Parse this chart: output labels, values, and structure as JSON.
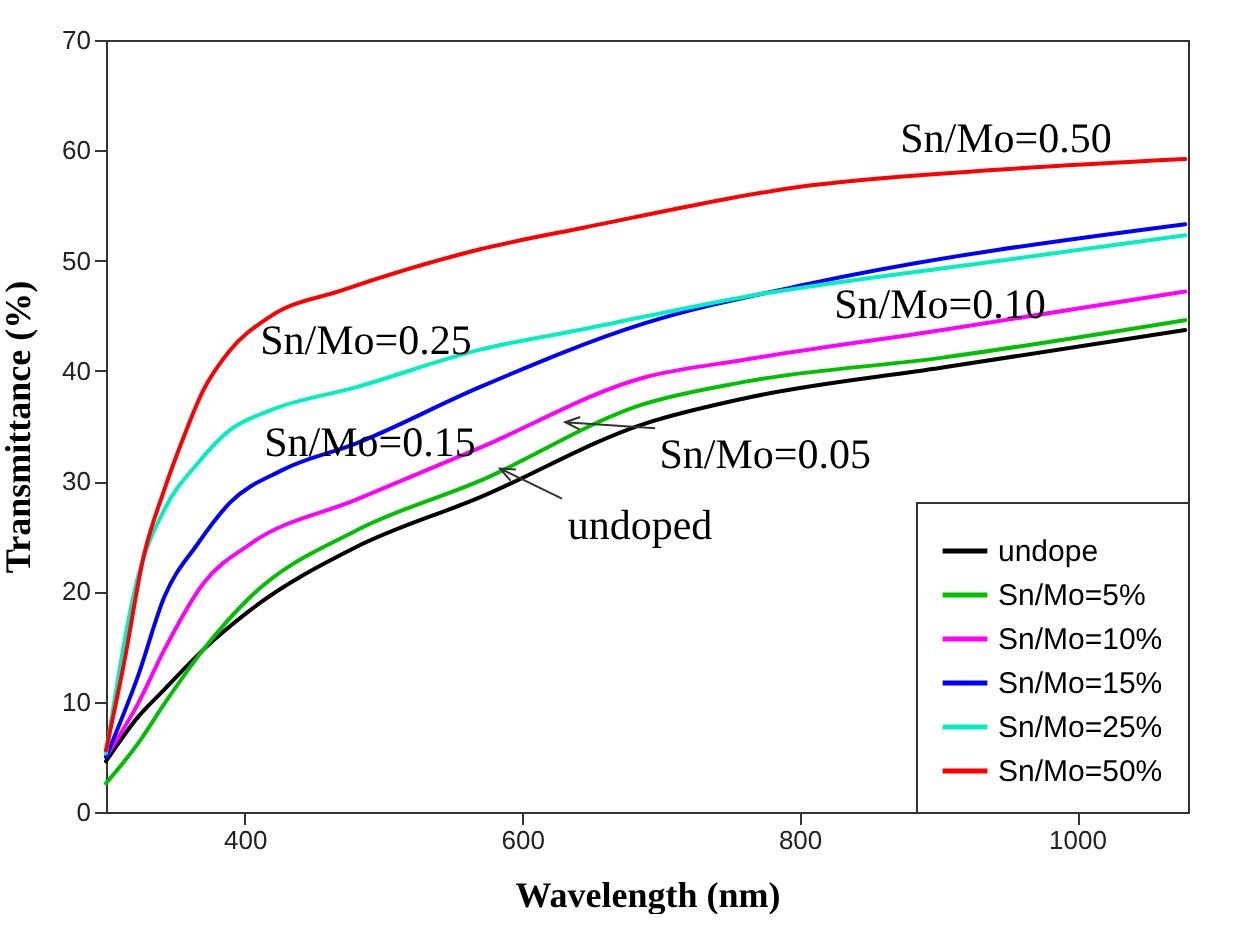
{
  "chart_data": {
    "type": "line",
    "xlabel": "Wavelength (nm)",
    "ylabel": "Transmittance (%)",
    "xlim": [
      300,
      1080
    ],
    "xticks": [
      400,
      600,
      800,
      1000
    ],
    "ylim": [
      0,
      70
    ],
    "yticks": [
      0,
      10,
      20,
      30,
      40,
      50,
      60,
      70
    ],
    "grid": false,
    "legend": "bottom right",
    "line_style": "solid",
    "marker": "none",
    "series": [
      {
        "name": "undope",
        "color": "#000000",
        "x": [
          300,
          323,
          342,
          370,
          404,
          480,
          569,
          688,
          760,
          903,
          1078
        ],
        "values": [
          4.6,
          8.6,
          11.1,
          14.7,
          18.3,
          24,
          28.5,
          35.2,
          37.5,
          40.3,
          43.7
        ]
      },
      {
        "name": "Sn/Mo=5%",
        "color": "#00c000",
        "x": [
          300,
          323,
          342,
          370,
          404,
          480,
          569,
          688,
          760,
          903,
          1078
        ],
        "values": [
          2.6,
          6.2,
          9.8,
          14.7,
          19.5,
          25.5,
          30,
          37,
          39,
          41.2,
          44.6
        ]
      },
      {
        "name": "Sn/Mo=10%",
        "color": "#ff00ff",
        "x": [
          300,
          323,
          342,
          370,
          404,
          480,
          569,
          688,
          760,
          903,
          1078
        ],
        "values": [
          5,
          9.8,
          14.7,
          20.7,
          24.3,
          28.3,
          33,
          39.4,
          41,
          43.7,
          47.2
        ]
      },
      {
        "name": "Sn/Mo=15%",
        "color": "#0000ff",
        "x": [
          300,
          323,
          342,
          366,
          389,
          427,
          480,
          569,
          688,
          807,
          1078
        ],
        "values": [
          5,
          12.3,
          19.5,
          24.3,
          28,
          31,
          33.4,
          38.5,
          44.3,
          47.9,
          53.3
        ]
      },
      {
        "name": "Sn/Mo=25%",
        "color": "#00f0c0",
        "x": [
          300,
          323,
          342,
          366,
          389,
          418,
          480,
          569,
          645,
          760,
          951,
          1078
        ],
        "values": [
          5.3,
          21.3,
          27.4,
          31.6,
          34.6,
          36.4,
          38.5,
          41.9,
          43.8,
          46.7,
          50.1,
          52.3
        ]
      },
      {
        "name": "Sn/Mo=50%",
        "color": "#ff0000",
        "x": [
          300,
          313,
          327,
          342,
          356,
          370,
          389,
          418,
          470,
          569,
          645,
          807,
          951,
          1078
        ],
        "values": [
          5.6,
          13.5,
          23.1,
          29.2,
          34,
          38.2,
          41.8,
          44.9,
          47.3,
          51,
          53,
          56.8,
          58.3,
          59.2
        ]
      }
    ],
    "annotations": [
      "Sn/Mo=0.50",
      "Sn/Mo=0.25",
      "Sn/Mo=0.15",
      "Sn/Mo=0.10",
      {
        "text": "Sn/Mo=0.05",
        "x": 631,
        "y": 32.8
      },
      {
        "text": "undoped",
        "x": 584,
        "y": 28.6
      }
    ]
  }
}
